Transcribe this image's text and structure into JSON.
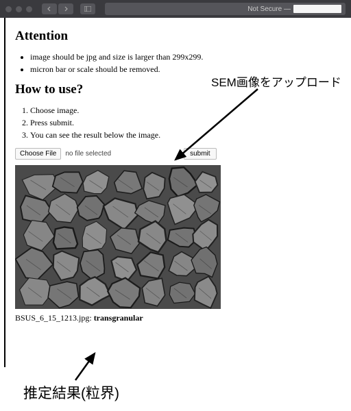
{
  "chrome": {
    "not_secure": "Not Secure —"
  },
  "page": {
    "attention_heading": "Attention",
    "attention_items": [
      "image should be jpg and size is larger than 299x299.",
      "micron bar or scale should be removed."
    ],
    "howto_heading": "How to use?",
    "howto_items": [
      "Choose image.",
      "Press submit.",
      "You can see the result below the image."
    ],
    "choose_file_label": "Choose File",
    "no_file_text": "no file selected",
    "submit_label": "submit",
    "result_filename": "BSUS_6_15_1213.jpg:",
    "result_value": "transgranular"
  },
  "annotations": {
    "upload_label": "SEM画像をアップロード",
    "result_label": "推定結果(粒界)"
  },
  "sem_texture": {
    "background": "#4a4a4a",
    "cells": [
      [
        10,
        8,
        50,
        40,
        "#888",
        "#222"
      ],
      [
        55,
        5,
        45,
        38,
        "#707070",
        "#1a1a1a"
      ],
      [
        98,
        10,
        42,
        35,
        "#909090",
        "#252525"
      ],
      [
        138,
        6,
        48,
        42,
        "#787878",
        "#1e1e1e"
      ],
      [
        182,
        12,
        40,
        36,
        "#858585",
        "#202020"
      ],
      [
        220,
        4,
        45,
        40,
        "#6e6e6e",
        "#181818"
      ],
      [
        260,
        10,
        38,
        34,
        "#929292",
        "#262626"
      ],
      [
        6,
        45,
        44,
        40,
        "#7a7a7a",
        "#1c1c1c"
      ],
      [
        48,
        42,
        46,
        44,
        "#8a8a8a",
        "#222"
      ],
      [
        92,
        46,
        40,
        38,
        "#727272",
        "#1a1a1a"
      ],
      [
        130,
        44,
        50,
        46,
        "#888",
        "#202020"
      ],
      [
        178,
        48,
        44,
        40,
        "#7e7e7e",
        "#1e1e1e"
      ],
      [
        220,
        42,
        42,
        42,
        "#909090",
        "#242424"
      ],
      [
        258,
        46,
        40,
        36,
        "#757575",
        "#1b1b1b"
      ],
      [
        8,
        82,
        46,
        42,
        "#868686",
        "#212121"
      ],
      [
        52,
        86,
        42,
        40,
        "#707070",
        "#191919"
      ],
      [
        92,
        84,
        48,
        44,
        "#8e8e8e",
        "#232323"
      ],
      [
        138,
        88,
        44,
        40,
        "#7a7a7a",
        "#1d1d1d"
      ],
      [
        180,
        84,
        46,
        44,
        "#888",
        "#212121"
      ],
      [
        224,
        86,
        40,
        38,
        "#747474",
        "#1a1a1a"
      ],
      [
        260,
        82,
        38,
        40,
        "#8c8c8c",
        "#222"
      ],
      [
        4,
        122,
        48,
        44,
        "#787878",
        "#1c1c1c"
      ],
      [
        50,
        126,
        44,
        42,
        "#8a8a8a",
        "#222"
      ],
      [
        92,
        124,
        46,
        44,
        "#727272",
        "#191919"
      ],
      [
        136,
        128,
        42,
        40,
        "#909090",
        "#242424"
      ],
      [
        176,
        124,
        48,
        44,
        "#7c7c7c",
        "#1d1d1d"
      ],
      [
        222,
        126,
        42,
        40,
        "#868686",
        "#212121"
      ],
      [
        260,
        122,
        38,
        42,
        "#707070",
        "#181818"
      ],
      [
        8,
        164,
        44,
        42,
        "#888",
        "#212121"
      ],
      [
        50,
        166,
        46,
        42,
        "#767676",
        "#1b1b1b"
      ],
      [
        94,
        164,
        42,
        40,
        "#8e8e8e",
        "#232323"
      ],
      [
        134,
        168,
        48,
        40,
        "#7a7a7a",
        "#1c1c1c"
      ],
      [
        180,
        164,
        44,
        44,
        "#848484",
        "#202020"
      ],
      [
        222,
        166,
        40,
        40,
        "#727272",
        "#191919"
      ],
      [
        258,
        164,
        40,
        44,
        "#8a8a8a",
        "#222"
      ]
    ]
  }
}
